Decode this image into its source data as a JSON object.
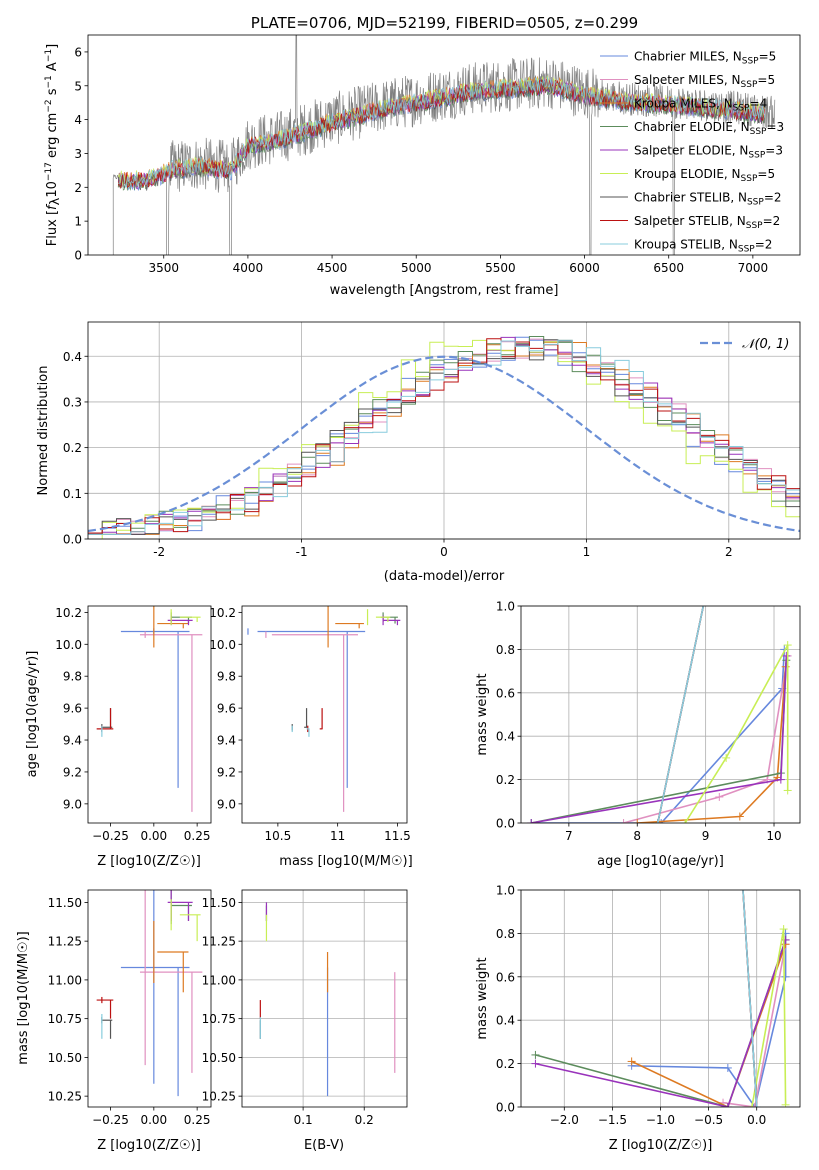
{
  "title": "PLATE=0706, MJD=52199, FIBERID=0505, z=0.299",
  "colors": {
    "Chabrier MILES": "#6688dd",
    "Salpeter MILES": "#e090c0",
    "Kroupa MILES": "#dd7a22",
    "Chabrier ELODIE": "#5c8c5c",
    "Salpeter ELODIE": "#9933bb",
    "Kroupa ELODIE": "#c8ee55",
    "Chabrier STELIB": "#555555",
    "Salpeter STELIB": "#bb1111",
    "Kroupa STELIB": "#88ccdd",
    "data": "#808080",
    "normal": "#6a8fd6",
    "grid": "#b0b0b0"
  },
  "chart_data": [
    {
      "id": "spectrum",
      "type": "line",
      "title": "PLATE=0706, MJD=52199, FIBERID=0505, z=0.299",
      "xlabel": "wavelength [Angstrom, rest frame]",
      "ylabel": "Flux [f_λ 10^-17 erg cm^-2 s^-1 A^-1]",
      "xlim": [
        3050,
        7280
      ],
      "ylim": [
        0,
        6.5
      ],
      "xticks": [
        3500,
        4000,
        4500,
        5000,
        5500,
        6000,
        6500,
        7000
      ],
      "yticks": [
        0,
        1,
        2,
        3,
        4,
        5,
        6
      ],
      "grid": false,
      "legend_position": "right",
      "x_range_data": [
        3200,
        7130
      ],
      "continuum_knots": [
        [
          3230,
          2.3
        ],
        [
          3400,
          2.3
        ],
        [
          3550,
          2.6
        ],
        [
          3700,
          2.7
        ],
        [
          3900,
          2.6
        ],
        [
          4000,
          3.3
        ],
        [
          4200,
          3.5
        ],
        [
          4500,
          4.0
        ],
        [
          4800,
          4.4
        ],
        [
          5000,
          4.6
        ],
        [
          5300,
          4.9
        ],
        [
          5500,
          5.0
        ],
        [
          5800,
          5.1
        ],
        [
          6000,
          4.8
        ],
        [
          6300,
          4.6
        ],
        [
          6600,
          4.5
        ],
        [
          6800,
          4.4
        ],
        [
          7000,
          4.3
        ],
        [
          7130,
          4.2
        ]
      ],
      "legend": [
        {
          "model": "Chabrier MILES",
          "label": "Chabrier MILES, N",
          "n": "=5"
        },
        {
          "model": "Salpeter MILES",
          "label": "Salpeter MILES, N",
          "n": "=5"
        },
        {
          "model": "Kroupa MILES",
          "label": "Kroupa MILES, N",
          "n": "=4"
        },
        {
          "model": "Chabrier ELODIE",
          "label": "Chabrier ELODIE, N",
          "n": "=3"
        },
        {
          "model": "Salpeter ELODIE",
          "label": "Salpeter ELODIE, N",
          "n": "=3"
        },
        {
          "model": "Kroupa ELODIE",
          "label": "Kroupa ELODIE, N",
          "n": "=5"
        },
        {
          "model": "Chabrier STELIB",
          "label": "Chabrier STELIB, N",
          "n": "=2"
        },
        {
          "model": "Salpeter STELIB",
          "label": "Salpeter STELIB, N",
          "n": "=2"
        },
        {
          "model": "Kroupa STELIB",
          "label": "Kroupa STELIB, N",
          "n": "=2"
        }
      ],
      "legend_sub": "SSP"
    },
    {
      "id": "residuals",
      "type": "line",
      "xlabel": "(data-model)/error",
      "ylabel": "Normed distribution",
      "xlim": [
        -2.5,
        2.5
      ],
      "ylim": [
        0,
        0.475
      ],
      "xticks": [
        -2,
        -1,
        0,
        1,
        2
      ],
      "yticks": [
        0.0,
        0.1,
        0.2,
        0.3,
        0.4
      ],
      "grid": true,
      "legend_position": "top-right",
      "normal_label": "𝒩(0, 1)",
      "bin_width": 0.1
    },
    {
      "id": "age_vs_Z",
      "type": "scatter",
      "xlabel": "Z [log10(Z/Z☉)]",
      "ylabel": "age  [log10(age/yr)]",
      "xlim": [
        -0.38,
        0.33
      ],
      "ylim": [
        8.88,
        10.24
      ],
      "xticks": [
        -0.25,
        0.0,
        0.25
      ],
      "xticklabels": [
        "−0.25",
        "0.00",
        "0.25"
      ],
      "yticks": [
        9.0,
        9.2,
        9.4,
        9.6,
        9.8,
        10.0,
        10.2
      ],
      "grid": false
    },
    {
      "id": "age_vs_mass",
      "type": "scatter",
      "xlabel": "mass [log10(M/M☉)]",
      "xlim": [
        10.2,
        11.58
      ],
      "ylim": [
        8.88,
        10.24
      ],
      "xticks": [
        10.5,
        11.0,
        11.5
      ],
      "yticks": [
        9.0,
        9.2,
        9.4,
        9.6,
        9.8,
        10.0,
        10.2
      ],
      "grid": false
    },
    {
      "id": "weight_vs_age",
      "type": "line",
      "xlabel": "age  [log10(age/yr)]",
      "ylabel": "mass weight",
      "xlim": [
        6.3,
        10.38
      ],
      "ylim": [
        0,
        1.0
      ],
      "xticks": [
        7,
        8,
        9,
        10
      ],
      "yticks": [
        0.0,
        0.2,
        0.4,
        0.6,
        0.8,
        1.0
      ],
      "grid": true
    },
    {
      "id": "mass_vs_Z",
      "type": "scatter",
      "xlabel": "Z [log10(Z/Z☉)]",
      "ylabel": "mass [log10(M/M☉)]",
      "xlim": [
        -0.38,
        0.33
      ],
      "ylim": [
        10.18,
        11.58
      ],
      "xticks": [
        -0.25,
        0.0,
        0.25
      ],
      "xticklabels": [
        "−0.25",
        "0.00",
        "0.25"
      ],
      "yticks": [
        10.25,
        10.5,
        10.75,
        11.0,
        11.25,
        11.5
      ],
      "grid": false
    },
    {
      "id": "mass_vs_ebv",
      "type": "scatter",
      "xlabel": "E(B-V)",
      "xlim": [
        0.0,
        0.27
      ],
      "ylim": [
        10.18,
        11.58
      ],
      "xticks": [
        0.1,
        0.2
      ],
      "yticks": [
        10.25,
        10.5,
        10.75,
        11.0,
        11.25,
        11.5
      ],
      "grid": true
    },
    {
      "id": "weight_vs_Z",
      "type": "line",
      "xlabel": "Z [log10(Z/Z☉)]",
      "ylabel": "mass weight",
      "xlim": [
        -2.45,
        0.45
      ],
      "ylim": [
        0,
        1.0
      ],
      "xticks": [
        -2.0,
        -1.5,
        -1.0,
        -0.5,
        0.0
      ],
      "xticklabels": [
        "−2.0",
        "−1.5",
        "−1.0",
        "−0.5",
        "0.0"
      ],
      "yticks": [
        0.0,
        0.2,
        0.4,
        0.6,
        0.8,
        1.0
      ],
      "grid": true
    }
  ],
  "fits": [
    {
      "model": "Chabrier MILES",
      "Z": [
        0.14,
        0.0
      ],
      "Zerr": [
        0.33,
        0.05
      ],
      "age": [
        10.08,
        9.1
      ],
      "ageerr": [
        0.0,
        0.0
      ],
      "mass": [
        11.08,
        10.25
      ],
      "masserr": [
        0.75,
        0.05
      ],
      "ebv": 0.14,
      "ebverr": 0.0,
      "wa": [
        [
          6.45,
          0.0
        ],
        [
          8.35,
          0.0
        ],
        [
          10.12,
          0.62
        ],
        [
          10.15,
          0.8
        ]
      ],
      "wz": [
        [
          -1.3,
          0.19
        ],
        [
          -0.3,
          0.18
        ],
        [
          -0.02,
          0.0
        ],
        [
          0.3,
          0.6
        ],
        [
          0.3,
          0.8
        ]
      ]
    },
    {
      "model": "Salpeter MILES",
      "Z": [
        0.22,
        -0.05
      ],
      "Zerr": [
        0.3,
        0.05
      ],
      "age": [
        10.06,
        8.95
      ],
      "ageerr": [
        0.0,
        0.0
      ],
      "mass": [
        11.05,
        10.4
      ],
      "masserr": [
        0.6,
        0.03
      ],
      "ebv": 0.25,
      "ebverr": 0.0,
      "wa": [
        [
          7.8,
          0.0
        ],
        [
          9.2,
          0.12
        ],
        [
          9.9,
          0.2
        ],
        [
          10.2,
          0.77
        ]
      ],
      "wz": [
        [
          -0.35,
          0.02
        ],
        [
          -0.02,
          0.0
        ],
        [
          0.3,
          0.75
        ]
      ]
    },
    {
      "model": "Kroupa MILES",
      "Z": [
        0.17,
        0.0
      ],
      "Zerr": [
        0.15,
        0.04
      ],
      "age": [
        10.13,
        10.1
      ],
      "ageerr": [
        0.15,
        0.05
      ],
      "mass": [
        11.18,
        10.92
      ],
      "masserr": [
        0.2,
        0.02
      ],
      "ebv": 0.14,
      "ebverr": 0.0,
      "wa": [
        [
          8.0,
          0.0
        ],
        [
          9.5,
          0.03
        ],
        [
          10.05,
          0.21
        ],
        [
          10.17,
          0.72
        ]
      ],
      "wz": [
        [
          -1.3,
          0.21
        ],
        [
          -0.3,
          0.0
        ],
        [
          0.3,
          0.75
        ]
      ]
    },
    {
      "model": "Chabrier ELODIE",
      "Z": [
        0.2,
        0.1
      ],
      "Zerr": [
        0.1,
        0.05
      ],
      "age": [
        10.17,
        10.13
      ],
      "ageerr": [
        0.03,
        0.0
      ],
      "mass": [
        11.48,
        11.38
      ],
      "masserr": [
        0.12,
        0.03
      ],
      "ebv": 0.04,
      "ebverr": 0.0,
      "wa": [
        [
          6.45,
          0.0
        ],
        [
          10.1,
          0.23
        ],
        [
          10.18,
          0.75
        ]
      ],
      "wz": [
        [
          -2.3,
          0.24
        ],
        [
          -0.3,
          0.0
        ],
        [
          0.3,
          0.77
        ]
      ]
    },
    {
      "model": "Salpeter ELODIE",
      "Z": [
        0.2,
        0.1
      ],
      "Zerr": [
        0.12,
        0.05
      ],
      "age": [
        10.15,
        10.12
      ],
      "ageerr": [
        0.03,
        0.0
      ],
      "mass": [
        11.5,
        11.38
      ],
      "masserr": [
        0.12,
        0.02
      ],
      "ebv": 0.04,
      "ebverr": 0.0,
      "wa": [
        [
          6.45,
          0.0
        ],
        [
          10.1,
          0.2
        ],
        [
          10.18,
          0.77
        ]
      ],
      "wz": [
        [
          -2.3,
          0.2
        ],
        [
          -0.3,
          0.0
        ],
        [
          0.3,
          0.77
        ]
      ]
    },
    {
      "model": "Kroupa ELODIE",
      "Z": [
        0.25,
        0.1
      ],
      "Zerr": [
        0.1,
        0.05
      ],
      "age": [
        10.17,
        10.14
      ],
      "ageerr": [
        0.05,
        0.0
      ],
      "mass": [
        11.42,
        11.25
      ],
      "masserr": [
        0.1,
        0.05
      ],
      "ebv": 0.04,
      "ebverr": 0.0,
      "wa": [
        [
          8.7,
          0.0
        ],
        [
          9.3,
          0.3
        ],
        [
          10.2,
          0.82
        ],
        [
          10.2,
          0.15
        ]
      ],
      "wz": [
        [
          -0.05,
          0.0
        ],
        [
          0.28,
          0.82
        ],
        [
          0.3,
          0.01
        ]
      ]
    },
    {
      "model": "Chabrier STELIB",
      "Z": [
        -0.25,
        -0.3
      ],
      "Zerr": [
        0.05,
        0.0
      ],
      "age": [
        9.48,
        9.6
      ],
      "ageerr": [
        0.0,
        0.0
      ],
      "mass": [
        10.74,
        10.62
      ],
      "masserr": [
        0.02,
        0.0
      ],
      "ebv": 0.03,
      "ebverr": 0.0,
      "wa": [
        [
          8.3,
          0.0
        ],
        [
          9.0,
          1.05
        ]
      ],
      "wz": [
        [
          -0.15,
          1.05
        ],
        [
          0.0,
          0.0
        ]
      ]
    },
    {
      "model": "Salpeter STELIB",
      "Z": [
        -0.25,
        -0.3
      ],
      "Zerr": [
        0.08,
        0.0
      ],
      "age": [
        9.47,
        9.6
      ],
      "ageerr": [
        0.0,
        0.0
      ],
      "mass": [
        10.87,
        10.75
      ],
      "masserr": [
        0.02,
        0.0
      ],
      "ebv": 0.03,
      "ebverr": 0.0,
      "wa": [
        [
          8.3,
          0.0
        ],
        [
          9.0,
          1.05
        ]
      ],
      "wz": [
        [
          -0.15,
          1.05
        ],
        [
          0.0,
          0.0
        ]
      ]
    },
    {
      "model": "Kroupa STELIB",
      "Z": [
        -0.3,
        -0.3
      ],
      "Zerr": [
        0.0,
        0.0
      ],
      "age": [
        9.47,
        9.42
      ],
      "ageerr": [
        0.0,
        0.0
      ],
      "mass": [
        10.76,
        10.62
      ],
      "masserr": [
        0.02,
        0.0
      ],
      "ebv": 0.03,
      "ebverr": 0.0,
      "wa": [
        [
          8.3,
          0.0
        ],
        [
          9.0,
          1.05
        ]
      ],
      "wz": [
        [
          -0.15,
          1.05
        ],
        [
          0.0,
          0.0
        ]
      ]
    }
  ]
}
